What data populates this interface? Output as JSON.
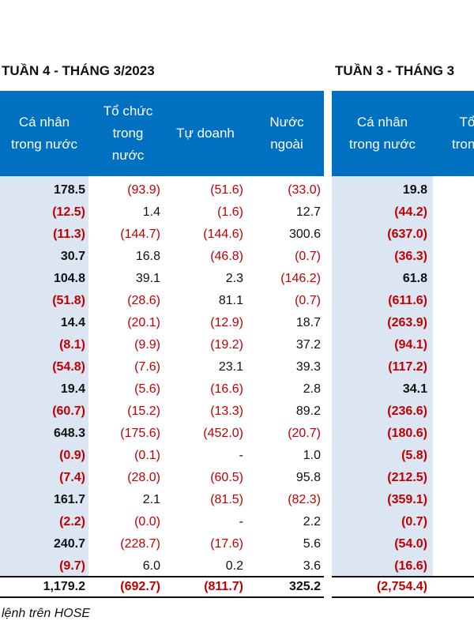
{
  "left": {
    "title": "TUẦN 4 - THÁNG 3/2023",
    "headers": [
      "Cá nhân\ntrong nước",
      "Tổ chức\ntrong\nnước",
      "Tự doanh",
      "Nước\nngoài"
    ],
    "rows": [
      [
        "178.5",
        "(93.9)",
        "(51.6)",
        "(33.0)"
      ],
      [
        "(12.5)",
        "1.4",
        "(1.6)",
        "12.7"
      ],
      [
        "(11.3)",
        "(144.7)",
        "(144.6)",
        "300.6"
      ],
      [
        "30.7",
        "16.8",
        "(46.8)",
        "(0.7)"
      ],
      [
        "104.8",
        "39.1",
        "2.3",
        "(146.2)"
      ],
      [
        "(51.8)",
        "(28.6)",
        "81.1",
        "(0.7)"
      ],
      [
        "14.4",
        "(20.1)",
        "(12.9)",
        "18.7"
      ],
      [
        "(8.1)",
        "(9.9)",
        "(19.2)",
        "37.2"
      ],
      [
        "(54.8)",
        "(7.6)",
        "23.1",
        "39.3"
      ],
      [
        "19.4",
        "(5.6)",
        "(16.6)",
        "2.8"
      ],
      [
        "(60.7)",
        "(15.2)",
        "(13.3)",
        "89.2"
      ],
      [
        "648.3",
        "(175.6)",
        "(452.0)",
        "(20.7)"
      ],
      [
        "(0.9)",
        "(0.1)",
        "-",
        "1.0"
      ],
      [
        "(7.4)",
        "(28.0)",
        "(60.5)",
        "95.8"
      ],
      [
        "161.7",
        "2.1",
        "(81.5)",
        "(82.3)"
      ],
      [
        "(2.2)",
        "(0.0)",
        "-",
        "2.2"
      ],
      [
        "240.7",
        "(228.7)",
        "(17.6)",
        "5.6"
      ],
      [
        "(9.7)",
        "6.0",
        "0.2",
        "3.6"
      ]
    ],
    "total": [
      "1,179.2",
      "(692.7)",
      "(811.7)",
      "325.2"
    ]
  },
  "right": {
    "title": "TUẦN 3 - THÁNG 3",
    "headers": [
      "Cá nhân\ntrong nước",
      "Tổ\ntrong"
    ],
    "rows": [
      [
        "19.8"
      ],
      [
        "(44.2)"
      ],
      [
        "(637.0)"
      ],
      [
        "(36.3)"
      ],
      [
        "61.8"
      ],
      [
        "(611.6)"
      ],
      [
        "(263.9)"
      ],
      [
        "(94.1)"
      ],
      [
        "(117.2)"
      ],
      [
        "34.1"
      ],
      [
        "(236.6)"
      ],
      [
        "(180.6)"
      ],
      [
        "(5.8)"
      ],
      [
        "(212.5)"
      ],
      [
        "(359.1)"
      ],
      [
        "(0.7)"
      ],
      [
        "(54.0)"
      ],
      [
        "(16.6)"
      ]
    ],
    "total": [
      "(2,754.4)"
    ]
  },
  "footnote": "lệnh trên HOSE",
  "colors": {
    "header_bg": "#0070c0",
    "shade": "#dce6f2",
    "negative": "#c00000"
  }
}
